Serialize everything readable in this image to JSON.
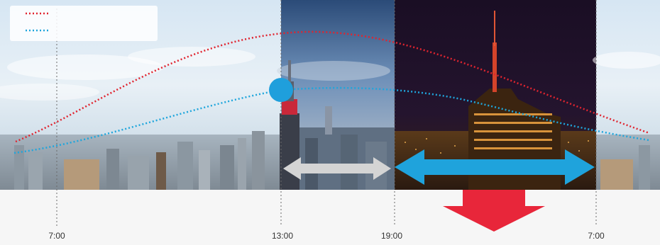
{
  "diagram": {
    "time_axis_labels": [
      "7:00",
      "13:00",
      "19:00",
      "7:00"
    ],
    "legend": {
      "series": [
        {
          "color": "#e0242f",
          "style": "dotted"
        },
        {
          "color": "#1fa6dc",
          "style": "dotted"
        }
      ]
    },
    "scenes": [
      "daytime city skyline",
      "evening city skyline",
      "night city skyline"
    ],
    "colors": {
      "red_curve": "#e0242f",
      "blue_curve": "#1fa6dc",
      "blue_marker": "#1f9fdc",
      "gray_arrow": "#cfcfcf",
      "blue_arrow": "#1fa3dc",
      "red_arrow": "#e8263a"
    },
    "icons": [
      "double-arrow-gray",
      "double-arrow-blue",
      "down-arrow-red",
      "circle-marker"
    ]
  }
}
